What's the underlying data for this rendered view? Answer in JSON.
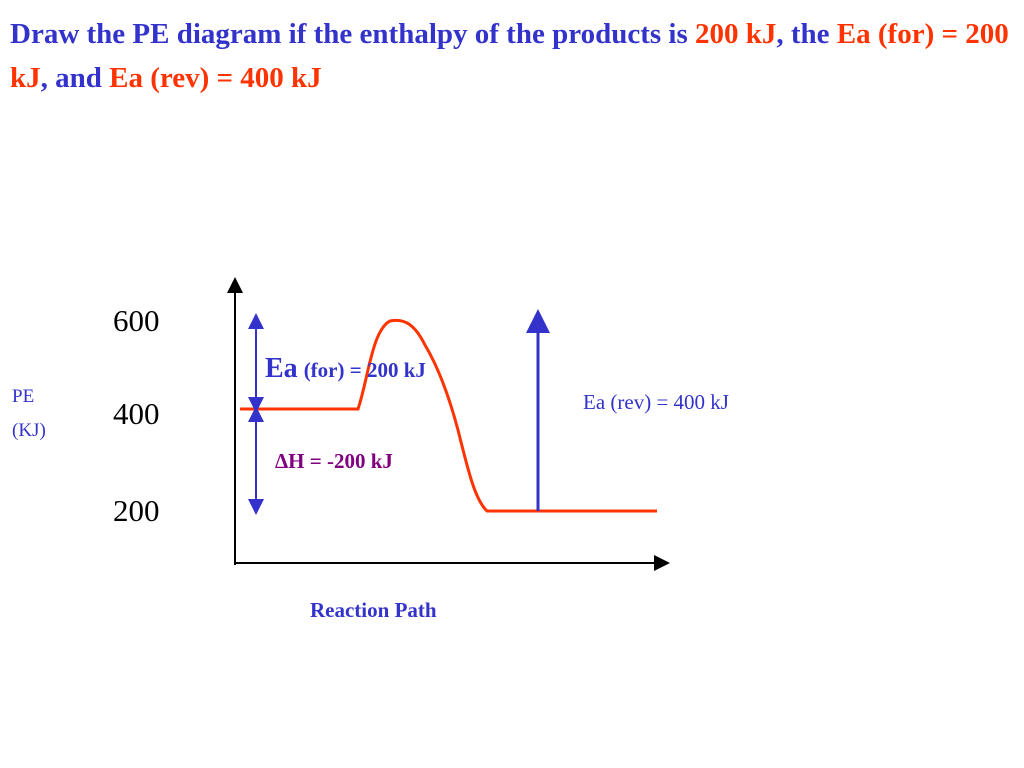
{
  "title": {
    "segments": [
      {
        "text": "Draw the PE diagram if the enthalpy of the products is ",
        "color": "#3333cc"
      },
      {
        "text": "200 kJ",
        "color": "#ff3300"
      },
      {
        "text": ", the ",
        "color": "#3333cc"
      },
      {
        "text": "Ea (for) = 200 kJ",
        "color": "#ff3300"
      },
      {
        "text": ", and ",
        "color": "#3333cc"
      },
      {
        "text": "Ea (rev) = 400 kJ",
        "color": "#ff3300"
      }
    ]
  },
  "diagram": {
    "y_axis_title": [
      "PE",
      "(KJ)"
    ],
    "y_axis_values": [
      600,
      400,
      200
    ],
    "ea_forward": {
      "symbol": "Ea",
      "text": "(for) = 200 kJ"
    },
    "delta_h": "ΔH = -200 kJ",
    "ea_reverse": "Ea (rev) = 400 kJ",
    "x_axis_title": "Reaction Path"
  }
}
